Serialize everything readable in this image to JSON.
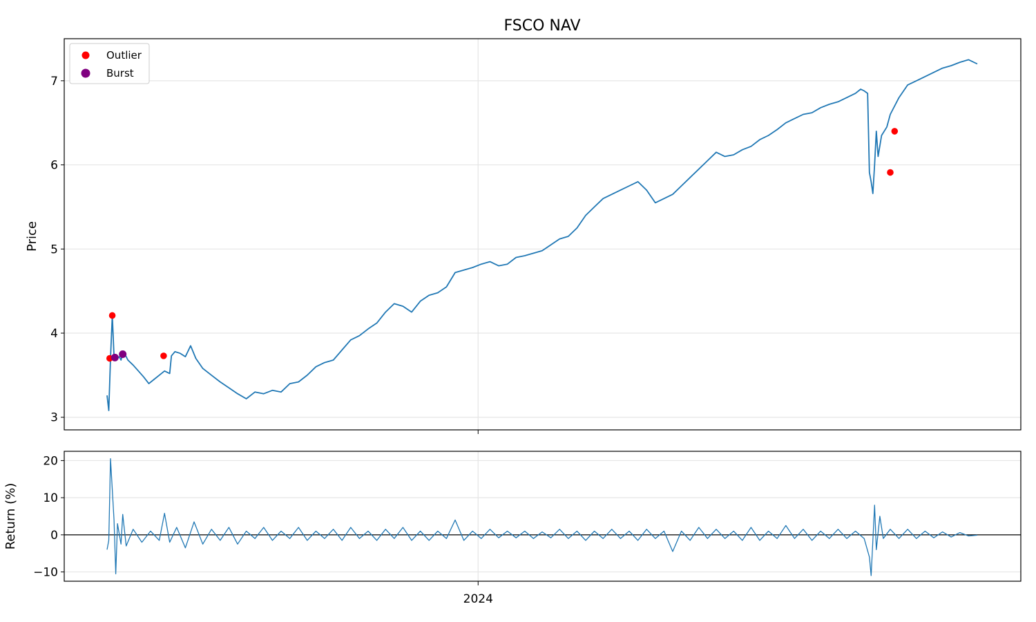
{
  "chart_data": [
    {
      "type": "line",
      "title": "FSCO NAV",
      "xlabel": "",
      "ylabel": "Price",
      "ylim": [
        2.85,
        7.5
      ],
      "yticks": [
        3,
        4,
        5,
        6,
        7
      ],
      "x_ticks": [
        {
          "label": "2024",
          "t": 0.4264
        }
      ],
      "grid": true,
      "legend_position": "top-left",
      "legend": [
        {
          "label": "Outlier",
          "color": "#ff0000"
        },
        {
          "label": "Burst",
          "color": "#800080"
        }
      ],
      "series": [
        {
          "color": "#1f77b4",
          "points": [
            [
              0.0,
              3.26
            ],
            [
              0.002,
              3.08
            ],
            [
              0.004,
              3.7
            ],
            [
              0.006,
              4.21
            ],
            [
              0.008,
              3.72
            ],
            [
              0.01,
              3.71
            ],
            [
              0.012,
              3.7
            ],
            [
              0.014,
              3.72
            ],
            [
              0.016,
              3.68
            ],
            [
              0.018,
              3.75
            ],
            [
              0.02,
              3.76
            ],
            [
              0.024,
              3.68
            ],
            [
              0.03,
              3.62
            ],
            [
              0.036,
              3.55
            ],
            [
              0.042,
              3.48
            ],
            [
              0.048,
              3.4
            ],
            [
              0.054,
              3.45
            ],
            [
              0.06,
              3.5
            ],
            [
              0.066,
              3.55
            ],
            [
              0.072,
              3.52
            ],
            [
              0.074,
              3.73
            ],
            [
              0.078,
              3.78
            ],
            [
              0.084,
              3.76
            ],
            [
              0.09,
              3.72
            ],
            [
              0.096,
              3.85
            ],
            [
              0.102,
              3.7
            ],
            [
              0.11,
              3.58
            ],
            [
              0.12,
              3.5
            ],
            [
              0.13,
              3.42
            ],
            [
              0.14,
              3.35
            ],
            [
              0.15,
              3.28
            ],
            [
              0.16,
              3.22
            ],
            [
              0.17,
              3.3
            ],
            [
              0.18,
              3.28
            ],
            [
              0.19,
              3.32
            ],
            [
              0.2,
              3.3
            ],
            [
              0.21,
              3.4
            ],
            [
              0.22,
              3.42
            ],
            [
              0.23,
              3.5
            ],
            [
              0.24,
              3.6
            ],
            [
              0.25,
              3.65
            ],
            [
              0.26,
              3.68
            ],
            [
              0.27,
              3.8
            ],
            [
              0.28,
              3.92
            ],
            [
              0.29,
              3.97
            ],
            [
              0.3,
              4.05
            ],
            [
              0.31,
              4.12
            ],
            [
              0.32,
              4.25
            ],
            [
              0.33,
              4.35
            ],
            [
              0.34,
              4.32
            ],
            [
              0.35,
              4.25
            ],
            [
              0.36,
              4.38
            ],
            [
              0.37,
              4.45
            ],
            [
              0.38,
              4.48
            ],
            [
              0.39,
              4.55
            ],
            [
              0.4,
              4.72
            ],
            [
              0.41,
              4.75
            ],
            [
              0.42,
              4.78
            ],
            [
              0.43,
              4.82
            ],
            [
              0.44,
              4.85
            ],
            [
              0.45,
              4.8
            ],
            [
              0.46,
              4.82
            ],
            [
              0.47,
              4.9
            ],
            [
              0.48,
              4.92
            ],
            [
              0.49,
              4.95
            ],
            [
              0.5,
              4.98
            ],
            [
              0.51,
              5.05
            ],
            [
              0.52,
              5.12
            ],
            [
              0.53,
              5.15
            ],
            [
              0.54,
              5.25
            ],
            [
              0.55,
              5.4
            ],
            [
              0.56,
              5.5
            ],
            [
              0.57,
              5.6
            ],
            [
              0.58,
              5.65
            ],
            [
              0.59,
              5.7
            ],
            [
              0.6,
              5.75
            ],
            [
              0.61,
              5.8
            ],
            [
              0.62,
              5.7
            ],
            [
              0.63,
              5.55
            ],
            [
              0.64,
              5.6
            ],
            [
              0.65,
              5.65
            ],
            [
              0.66,
              5.75
            ],
            [
              0.67,
              5.85
            ],
            [
              0.68,
              5.95
            ],
            [
              0.69,
              6.05
            ],
            [
              0.7,
              6.15
            ],
            [
              0.71,
              6.1
            ],
            [
              0.72,
              6.12
            ],
            [
              0.73,
              6.18
            ],
            [
              0.74,
              6.22
            ],
            [
              0.75,
              6.3
            ],
            [
              0.76,
              6.35
            ],
            [
              0.77,
              6.42
            ],
            [
              0.78,
              6.5
            ],
            [
              0.79,
              6.55
            ],
            [
              0.8,
              6.6
            ],
            [
              0.81,
              6.62
            ],
            [
              0.82,
              6.68
            ],
            [
              0.83,
              6.72
            ],
            [
              0.84,
              6.75
            ],
            [
              0.85,
              6.8
            ],
            [
              0.86,
              6.85
            ],
            [
              0.866,
              6.9
            ],
            [
              0.87,
              6.88
            ],
            [
              0.874,
              6.85
            ],
            [
              0.876,
              5.91
            ],
            [
              0.878,
              5.8
            ],
            [
              0.88,
              5.66
            ],
            [
              0.882,
              6.0
            ],
            [
              0.884,
              6.4
            ],
            [
              0.886,
              6.1
            ],
            [
              0.89,
              6.35
            ],
            [
              0.896,
              6.45
            ],
            [
              0.9,
              6.6
            ],
            [
              0.91,
              6.8
            ],
            [
              0.92,
              6.95
            ],
            [
              0.93,
              7.0
            ],
            [
              0.94,
              7.05
            ],
            [
              0.95,
              7.1
            ],
            [
              0.96,
              7.15
            ],
            [
              0.97,
              7.18
            ],
            [
              0.98,
              7.22
            ],
            [
              0.99,
              7.25
            ],
            [
              1.0,
              7.2
            ]
          ]
        }
      ],
      "scatter_series": [
        {
          "name": "Outlier",
          "color": "#ff0000",
          "points": [
            [
              0.003,
              3.7
            ],
            [
              0.006,
              4.21
            ],
            [
              0.065,
              3.73
            ],
            [
              0.9,
              5.91
            ],
            [
              0.905,
              6.4
            ]
          ]
        },
        {
          "name": "Burst",
          "color": "#800080",
          "points": [
            [
              0.009,
              3.71
            ],
            [
              0.018,
              3.75
            ]
          ]
        }
      ]
    },
    {
      "type": "line",
      "title": "",
      "xlabel": "",
      "ylabel": "Return (%)",
      "ylim": [
        -12.5,
        22.5
      ],
      "yticks": [
        -10,
        0,
        10,
        20
      ],
      "x_ticks": [
        {
          "label": "2024",
          "t": 0.4264
        }
      ],
      "grid": true,
      "zero_line": true,
      "series": [
        {
          "color": "#1f77b4",
          "points": [
            [
              0.0,
              -4.0
            ],
            [
              0.002,
              -1.5
            ],
            [
              0.004,
              20.5
            ],
            [
              0.008,
              4.0
            ],
            [
              0.01,
              -10.5
            ],
            [
              0.012,
              3.0
            ],
            [
              0.016,
              -2.5
            ],
            [
              0.018,
              5.5
            ],
            [
              0.022,
              -3.0
            ],
            [
              0.03,
              1.5
            ],
            [
              0.04,
              -2.0
            ],
            [
              0.05,
              1.0
            ],
            [
              0.06,
              -1.5
            ],
            [
              0.066,
              5.8
            ],
            [
              0.072,
              -2.0
            ],
            [
              0.08,
              2.0
            ],
            [
              0.09,
              -3.5
            ],
            [
              0.1,
              3.5
            ],
            [
              0.11,
              -2.5
            ],
            [
              0.12,
              1.5
            ],
            [
              0.13,
              -1.5
            ],
            [
              0.14,
              2.0
            ],
            [
              0.15,
              -2.5
            ],
            [
              0.16,
              1.0
            ],
            [
              0.17,
              -1.0
            ],
            [
              0.18,
              2.0
            ],
            [
              0.19,
              -1.5
            ],
            [
              0.2,
              1.0
            ],
            [
              0.21,
              -1.0
            ],
            [
              0.22,
              2.0
            ],
            [
              0.23,
              -1.5
            ],
            [
              0.24,
              1.0
            ],
            [
              0.25,
              -1.0
            ],
            [
              0.26,
              1.5
            ],
            [
              0.27,
              -1.5
            ],
            [
              0.28,
              2.0
            ],
            [
              0.29,
              -1.0
            ],
            [
              0.3,
              1.0
            ],
            [
              0.31,
              -1.5
            ],
            [
              0.32,
              1.5
            ],
            [
              0.33,
              -1.0
            ],
            [
              0.34,
              2.0
            ],
            [
              0.35,
              -1.5
            ],
            [
              0.36,
              1.0
            ],
            [
              0.37,
              -1.5
            ],
            [
              0.38,
              1.0
            ],
            [
              0.39,
              -1.0
            ],
            [
              0.4,
              4.0
            ],
            [
              0.41,
              -1.5
            ],
            [
              0.42,
              1.0
            ],
            [
              0.43,
              -1.0
            ],
            [
              0.44,
              1.5
            ],
            [
              0.45,
              -0.8
            ],
            [
              0.46,
              1.0
            ],
            [
              0.47,
              -0.8
            ],
            [
              0.48,
              1.0
            ],
            [
              0.49,
              -1.0
            ],
            [
              0.5,
              0.8
            ],
            [
              0.51,
              -0.8
            ],
            [
              0.52,
              1.5
            ],
            [
              0.53,
              -1.0
            ],
            [
              0.54,
              1.0
            ],
            [
              0.55,
              -1.5
            ],
            [
              0.56,
              1.0
            ],
            [
              0.57,
              -1.0
            ],
            [
              0.58,
              1.5
            ],
            [
              0.59,
              -1.0
            ],
            [
              0.6,
              1.0
            ],
            [
              0.61,
              -1.5
            ],
            [
              0.62,
              1.5
            ],
            [
              0.63,
              -1.0
            ],
            [
              0.64,
              1.0
            ],
            [
              0.65,
              -4.5
            ],
            [
              0.66,
              1.0
            ],
            [
              0.67,
              -1.5
            ],
            [
              0.68,
              2.0
            ],
            [
              0.69,
              -1.0
            ],
            [
              0.7,
              1.5
            ],
            [
              0.71,
              -1.0
            ],
            [
              0.72,
              1.0
            ],
            [
              0.73,
              -1.5
            ],
            [
              0.74,
              2.0
            ],
            [
              0.75,
              -1.5
            ],
            [
              0.76,
              1.0
            ],
            [
              0.77,
              -1.0
            ],
            [
              0.78,
              2.5
            ],
            [
              0.79,
              -1.0
            ],
            [
              0.8,
              1.5
            ],
            [
              0.81,
              -1.5
            ],
            [
              0.82,
              1.0
            ],
            [
              0.83,
              -1.0
            ],
            [
              0.84,
              1.5
            ],
            [
              0.85,
              -1.0
            ],
            [
              0.86,
              1.0
            ],
            [
              0.87,
              -1.0
            ],
            [
              0.876,
              -6.0
            ],
            [
              0.878,
              -11.0
            ],
            [
              0.882,
              8.0
            ],
            [
              0.884,
              -4.0
            ],
            [
              0.888,
              5.0
            ],
            [
              0.892,
              -1.0
            ],
            [
              0.9,
              1.5
            ],
            [
              0.91,
              -1.0
            ],
            [
              0.92,
              1.5
            ],
            [
              0.93,
              -1.0
            ],
            [
              0.94,
              1.0
            ],
            [
              0.95,
              -0.8
            ],
            [
              0.96,
              0.8
            ],
            [
              0.97,
              -0.6
            ],
            [
              0.98,
              0.6
            ],
            [
              0.99,
              -0.3
            ],
            [
              1.0,
              -0.1
            ]
          ]
        }
      ]
    }
  ]
}
